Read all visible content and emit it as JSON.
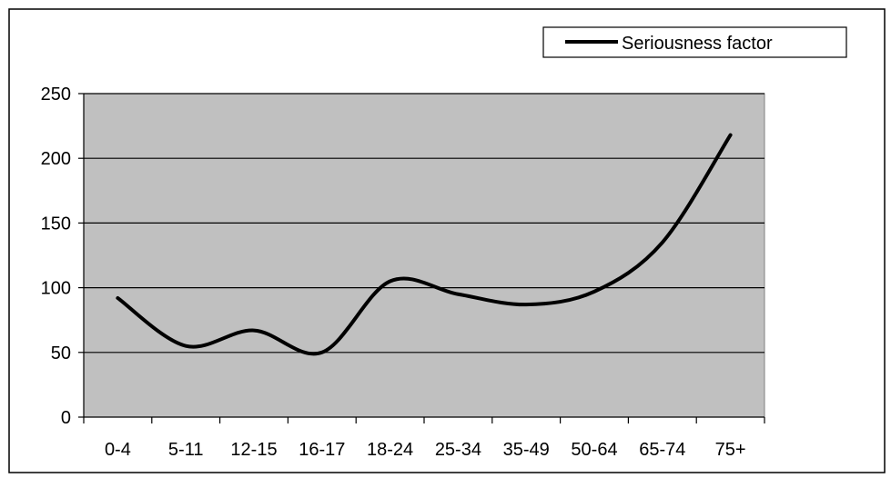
{
  "chart_data": {
    "type": "line",
    "categories": [
      "0-4",
      "5-11",
      "12-15",
      "16-17",
      "18-24",
      "25-34",
      "35-49",
      "50-64",
      "65-74",
      "75+"
    ],
    "series": [
      {
        "name": "Seriousness factor",
        "values": [
          92,
          55,
          67,
          50,
          105,
          95,
          87,
          97,
          135,
          218
        ],
        "color": "#000000"
      }
    ],
    "yticks": [
      0,
      50,
      100,
      150,
      200,
      250
    ],
    "ylim": [
      0,
      250
    ],
    "grid": "horizontal",
    "legend_position": "top-right",
    "plot_background": "#c0c0c0",
    "smooth": true
  }
}
